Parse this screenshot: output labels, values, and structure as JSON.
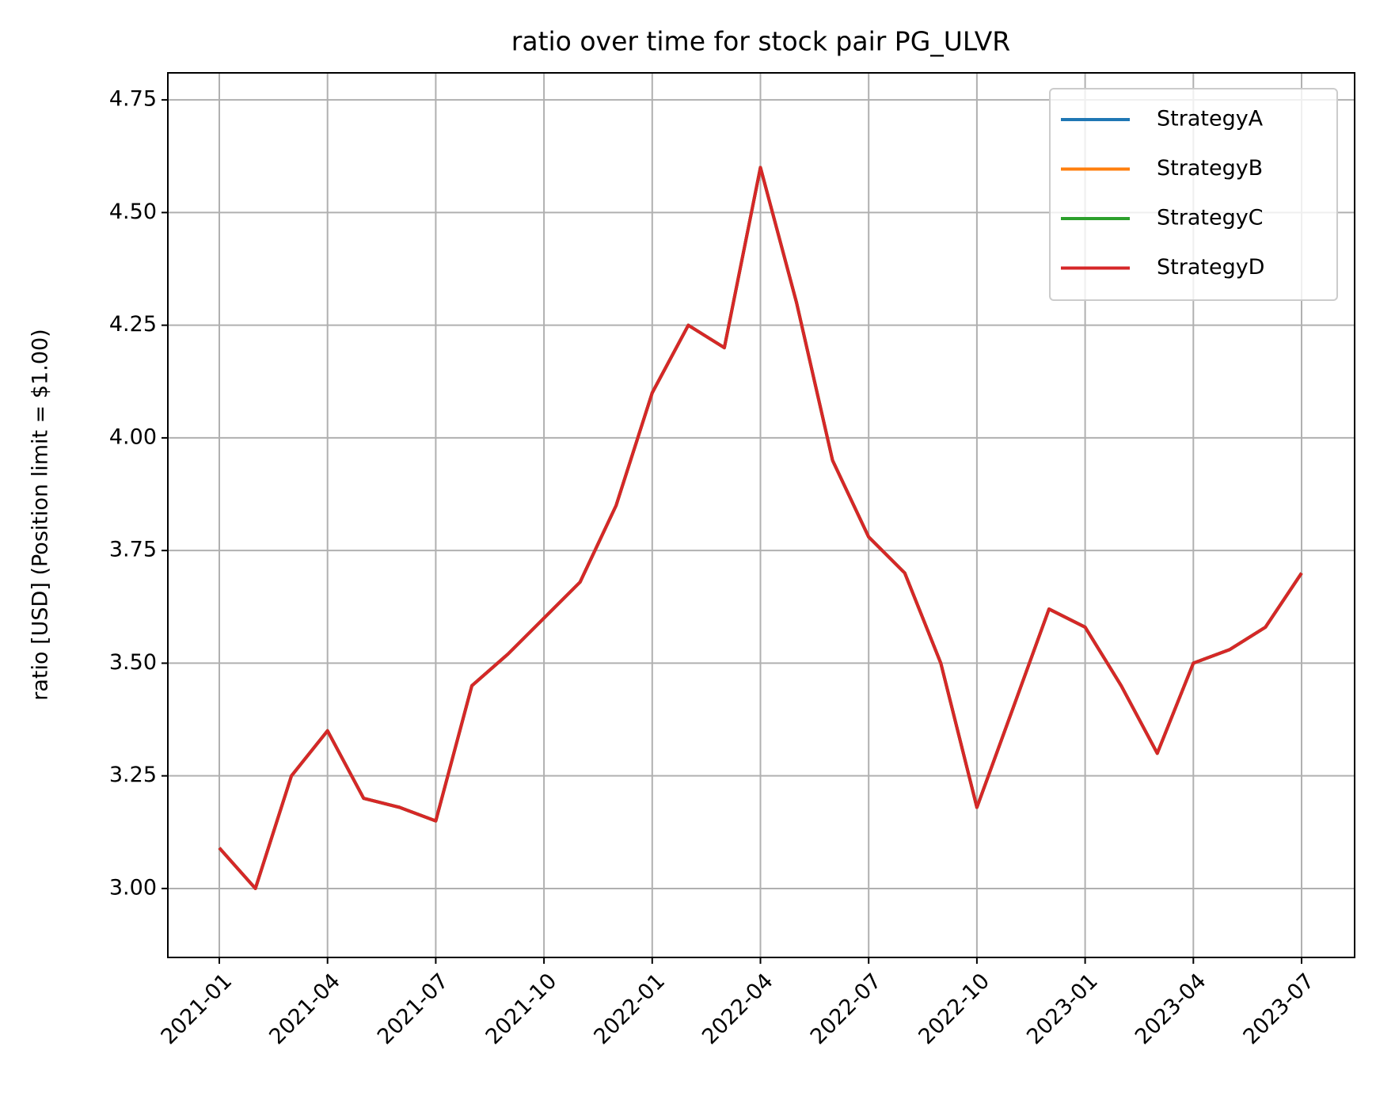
{
  "chart_data": {
    "type": "line",
    "title": "ratio over time for stock pair PG_ULVR",
    "y_label": "ratio [USD] (Position limit = $1.00)",
    "categories": [
      "2021-01",
      null,
      null,
      "2021-04",
      null,
      null,
      "2021-07",
      null,
      null,
      "2021-10",
      null,
      null,
      "2022-01",
      null,
      null,
      "2022-04",
      null,
      null,
      "2022-07",
      null,
      null,
      "2022-10",
      null,
      null,
      "2023-01",
      null,
      null,
      "2023-04",
      null,
      null,
      "2023-07"
    ],
    "series": [
      {
        "name": "StrategyA",
        "color": "#1f77b4",
        "values": [
          3.09,
          3.0,
          3.25,
          3.35,
          3.2,
          3.18,
          3.15,
          3.45,
          3.52,
          3.6,
          3.68,
          3.85,
          4.1,
          4.25,
          4.2,
          4.6,
          4.3,
          3.95,
          3.78,
          3.7,
          3.5,
          3.18,
          3.4,
          3.62,
          3.58,
          3.45,
          3.3,
          3.5,
          3.53,
          3.58,
          3.7
        ]
      },
      {
        "name": "StrategyB",
        "color": "#ff7f0e",
        "values": [
          3.09,
          3.0,
          3.25,
          3.35,
          3.2,
          3.18,
          3.15,
          3.45,
          3.52,
          3.6,
          3.68,
          3.85,
          4.1,
          4.25,
          4.2,
          4.6,
          4.3,
          3.95,
          3.78,
          3.7,
          3.5,
          3.18,
          3.4,
          3.62,
          3.58,
          3.45,
          3.3,
          3.5,
          3.53,
          3.58,
          3.7
        ]
      },
      {
        "name": "StrategyC",
        "color": "#2ca02c",
        "values": [
          3.09,
          3.0,
          3.25,
          3.35,
          3.2,
          3.18,
          3.15,
          3.45,
          3.52,
          3.6,
          3.68,
          3.85,
          4.1,
          4.25,
          4.2,
          4.6,
          4.3,
          3.95,
          3.78,
          3.7,
          3.5,
          3.18,
          3.4,
          3.62,
          3.58,
          3.45,
          3.3,
          3.5,
          3.53,
          3.58,
          3.7
        ]
      },
      {
        "name": "StrategyD",
        "color": "#d62728",
        "values": [
          3.09,
          3.0,
          3.25,
          3.35,
          3.2,
          3.18,
          3.15,
          3.45,
          3.52,
          3.6,
          3.68,
          3.85,
          4.1,
          4.25,
          4.2,
          4.6,
          4.3,
          3.95,
          3.78,
          3.7,
          3.5,
          3.18,
          3.4,
          3.62,
          3.58,
          3.45,
          3.3,
          3.5,
          3.53,
          3.58,
          3.7
        ]
      }
    ],
    "ylim": [
      2.847,
      4.81
    ],
    "yticks": [
      {
        "value": 3,
        "label": "3.00"
      },
      {
        "value": 3.25,
        "label": "3.25"
      },
      {
        "value": 3.5,
        "label": "3.50"
      },
      {
        "value": 3.75,
        "label": "3.75"
      },
      {
        "value": 4,
        "label": "4.00"
      },
      {
        "value": 4.25,
        "label": "4.25"
      },
      {
        "value": 4.5,
        "label": "4.50"
      },
      {
        "value": 4.75,
        "label": "4.75"
      }
    ],
    "grid": true,
    "legend": "upper right"
  }
}
